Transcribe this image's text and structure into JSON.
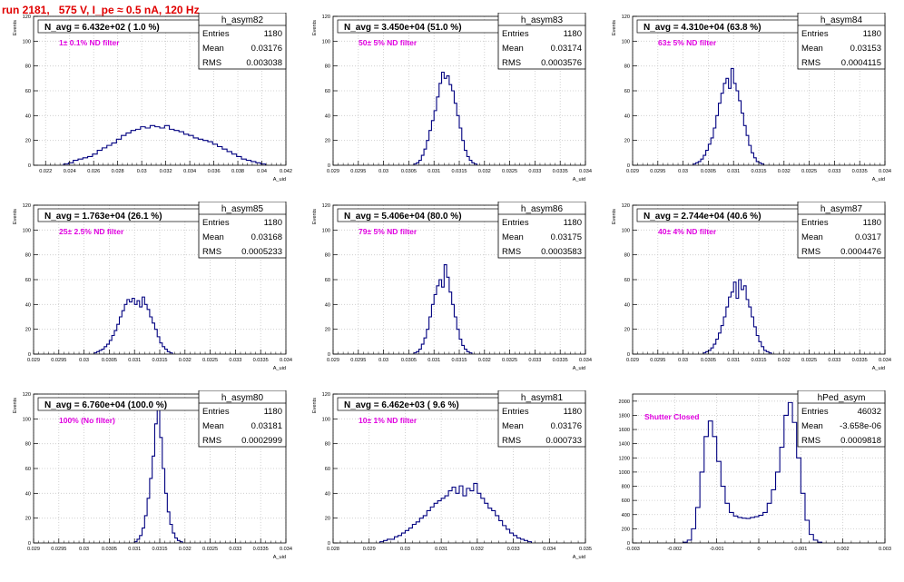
{
  "run_title": "run 2181,   575 V, I_pe ≈ 0.5 nA, 120 Hz",
  "colors": {
    "title": "#e00000",
    "histogram": "#000080",
    "note": "#e000e0",
    "grid": "#c8c8c8"
  },
  "stats_labels": {
    "entries": "Entries",
    "mean": "Mean",
    "rms": "RMS"
  },
  "chart_data": [
    {
      "type": "bar",
      "name": "h_asym82",
      "title": "N_avg = 6.432e+02 ( 1.0 %)",
      "note": "1± 0.1% ND filter",
      "stats": {
        "entries": "1180",
        "mean": "0.03176",
        "rms": "0.003038"
      },
      "xlabel": "A_uid",
      "ylabel": "Events",
      "xlim": [
        0.021,
        0.042
      ],
      "ylim": [
        0,
        120
      ],
      "xticks": [
        "0.022",
        "0.024",
        "0.026",
        "0.028",
        "0.03",
        "0.032",
        "0.034",
        "0.036",
        "0.038",
        "0.04",
        "0.042"
      ],
      "xtick_values": [
        0.022,
        0.024,
        0.026,
        0.028,
        0.03,
        0.032,
        0.034,
        0.036,
        0.038,
        0.04,
        0.042
      ],
      "yticks": [
        "0",
        "20",
        "40",
        "60",
        "80",
        "100",
        "120"
      ],
      "ytick_values": [
        0,
        20,
        40,
        60,
        80,
        100,
        120
      ],
      "grid": true,
      "bins": {
        "start": 0.0235,
        "width": 0.0004,
        "values": [
          1,
          2,
          4,
          5,
          6,
          7,
          9,
          12,
          14,
          16,
          18,
          21,
          24,
          26,
          28,
          29,
          31,
          30,
          32,
          31,
          30,
          32,
          29,
          28,
          27,
          25,
          24,
          22,
          21,
          20,
          19,
          17,
          15,
          13,
          11,
          9,
          7,
          5,
          4,
          3,
          2,
          1
        ]
      }
    },
    {
      "type": "bar",
      "name": "h_asym83",
      "title": "N_avg = 3.450e+04 (51.0 %)",
      "note": "50± 5% ND filter",
      "stats": {
        "entries": "1180",
        "mean": "0.03174",
        "rms": "0.0003576"
      },
      "xlabel": "A_uid",
      "ylabel": "Events",
      "xlim": [
        0.029,
        0.034
      ],
      "ylim": [
        0,
        120
      ],
      "xticks": [
        "0.029",
        "0.0295",
        "0.03",
        "0.0305",
        "0.031",
        "0.0315",
        "0.032",
        "0.0325",
        "0.033",
        "0.0335",
        "0.034"
      ],
      "xtick_values": [
        0.029,
        0.0295,
        0.03,
        0.0305,
        0.031,
        0.0315,
        0.032,
        0.0325,
        0.033,
        0.0335,
        0.034
      ],
      "yticks": [
        "0",
        "20",
        "40",
        "60",
        "80",
        "100",
        "120"
      ],
      "ytick_values": [
        0,
        20,
        40,
        60,
        80,
        100,
        120
      ],
      "grid": true,
      "bins": {
        "start": 0.0306,
        "width": 5e-05,
        "values": [
          1,
          2,
          4,
          8,
          13,
          20,
          28,
          36,
          44,
          55,
          66,
          75,
          70,
          72,
          65,
          60,
          50,
          40,
          30,
          20,
          12,
          7,
          4,
          2,
          1
        ]
      }
    },
    {
      "type": "bar",
      "name": "h_asym84",
      "title": "N_avg = 4.310e+04 (63.8 %)",
      "note": "63± 5% ND filter",
      "stats": {
        "entries": "1180",
        "mean": "0.03153",
        "rms": "0.0004115"
      },
      "xlabel": "A_uid",
      "ylabel": "Events",
      "xlim": [
        0.029,
        0.034
      ],
      "ylim": [
        0,
        120
      ],
      "xticks": [
        "0.029",
        "0.0295",
        "0.03",
        "0.0305",
        "0.031",
        "0.0315",
        "0.032",
        "0.0325",
        "0.033",
        "0.0335",
        "0.034"
      ],
      "xtick_values": [
        0.029,
        0.0295,
        0.03,
        0.0305,
        0.031,
        0.0315,
        0.032,
        0.0325,
        0.033,
        0.0335,
        0.034
      ],
      "yticks": [
        "0",
        "20",
        "40",
        "60",
        "80",
        "100",
        "120"
      ],
      "ytick_values": [
        0,
        20,
        40,
        60,
        80,
        100,
        120
      ],
      "grid": true,
      "bins": {
        "start": 0.0302,
        "width": 5e-05,
        "values": [
          1,
          2,
          3,
          5,
          8,
          12,
          17,
          22,
          30,
          40,
          50,
          58,
          66,
          70,
          62,
          78,
          66,
          60,
          52,
          42,
          32,
          24,
          16,
          10,
          6,
          3,
          2,
          1
        ]
      }
    },
    {
      "type": "bar",
      "name": "h_asym85",
      "title": "N_avg = 1.763e+04 (26.1 %)",
      "note": "25± 2.5% ND filter",
      "stats": {
        "entries": "1180",
        "mean": "0.03168",
        "rms": "0.0005233"
      },
      "xlabel": "A_uid",
      "ylabel": "Events",
      "xlim": [
        0.029,
        0.034
      ],
      "ylim": [
        0,
        120
      ],
      "xticks": [
        "0.029",
        "0.0295",
        "0.03",
        "0.0305",
        "0.031",
        "0.0315",
        "0.032",
        "0.0325",
        "0.033",
        "0.0335",
        "0.034"
      ],
      "xtick_values": [
        0.029,
        0.0295,
        0.03,
        0.0305,
        0.031,
        0.0315,
        0.032,
        0.0325,
        0.033,
        0.0335,
        0.034
      ],
      "yticks": [
        "0",
        "20",
        "40",
        "60",
        "80",
        "100",
        "120"
      ],
      "ytick_values": [
        0,
        20,
        40,
        60,
        80,
        100,
        120
      ],
      "grid": true,
      "bins": {
        "start": 0.0302,
        "width": 5e-05,
        "values": [
          1,
          2,
          3,
          4,
          6,
          8,
          11,
          15,
          19,
          24,
          30,
          35,
          40,
          44,
          42,
          45,
          40,
          43,
          38,
          46,
          40,
          36,
          30,
          25,
          20,
          14,
          9,
          6,
          4,
          2,
          1
        ]
      }
    },
    {
      "type": "bar",
      "name": "h_asym86",
      "title": "N_avg = 5.406e+04 (80.0 %)",
      "note": "79± 5% ND filter",
      "stats": {
        "entries": "1180",
        "mean": "0.03175",
        "rms": "0.0003583"
      },
      "xlabel": "A_uid",
      "ylabel": "Events",
      "xlim": [
        0.029,
        0.034
      ],
      "ylim": [
        0,
        120
      ],
      "xticks": [
        "0.029",
        "0.0295",
        "0.03",
        "0.0305",
        "0.031",
        "0.0315",
        "0.032",
        "0.0325",
        "0.033",
        "0.0335",
        "0.034"
      ],
      "xtick_values": [
        0.029,
        0.0295,
        0.03,
        0.0305,
        0.031,
        0.0315,
        0.032,
        0.0325,
        0.033,
        0.0335,
        0.034
      ],
      "yticks": [
        "0",
        "20",
        "40",
        "60",
        "80",
        "100",
        "120"
      ],
      "ytick_values": [
        0,
        20,
        40,
        60,
        80,
        100,
        120
      ],
      "grid": true,
      "bins": {
        "start": 0.0306,
        "width": 5e-05,
        "values": [
          1,
          2,
          4,
          8,
          13,
          20,
          30,
          40,
          48,
          55,
          60,
          54,
          72,
          62,
          50,
          40,
          30,
          20,
          12,
          7,
          4,
          2,
          1
        ]
      }
    },
    {
      "type": "bar",
      "name": "h_asym87",
      "title": "N_avg = 2.744e+04 (40.6 %)",
      "note": "40± 4% ND filter",
      "stats": {
        "entries": "1180",
        "mean": "0.0317",
        "rms": "0.0004476"
      },
      "xlabel": "A_uid",
      "ylabel": "Events",
      "xlim": [
        0.029,
        0.034
      ],
      "ylim": [
        0,
        120
      ],
      "xticks": [
        "0.029",
        "0.0295",
        "0.03",
        "0.0305",
        "0.031",
        "0.0315",
        "0.032",
        "0.0325",
        "0.033",
        "0.0335",
        "0.034"
      ],
      "xtick_values": [
        0.029,
        0.0295,
        0.03,
        0.0305,
        0.031,
        0.0315,
        0.032,
        0.0325,
        0.033,
        0.0335,
        0.034
      ],
      "yticks": [
        "0",
        "20",
        "40",
        "60",
        "80",
        "100",
        "120"
      ],
      "ytick_values": [
        0,
        20,
        40,
        60,
        80,
        100,
        120
      ],
      "grid": true,
      "bins": {
        "start": 0.0304,
        "width": 5e-05,
        "values": [
          1,
          2,
          3,
          5,
          8,
          12,
          17,
          23,
          30,
          38,
          46,
          50,
          58,
          45,
          60,
          52,
          55,
          44,
          38,
          30,
          22,
          15,
          10,
          6,
          3,
          2,
          1
        ]
      }
    },
    {
      "type": "bar",
      "name": "h_asym80",
      "title": "N_avg = 6.760e+04 (100.0 %)",
      "note": "100% (No filter)",
      "stats": {
        "entries": "1180",
        "mean": "0.03181",
        "rms": "0.0002999"
      },
      "xlabel": "A_uid",
      "ylabel": "Events",
      "xlim": [
        0.029,
        0.034
      ],
      "ylim": [
        0,
        120
      ],
      "xticks": [
        "0.029",
        "0.0295",
        "0.03",
        "0.0305",
        "0.031",
        "0.0315",
        "0.032",
        "0.0325",
        "0.033",
        "0.0335",
        "0.034"
      ],
      "xtick_values": [
        0.029,
        0.0295,
        0.03,
        0.0305,
        0.031,
        0.0315,
        0.032,
        0.0325,
        0.033,
        0.0335,
        0.034
      ],
      "yticks": [
        "0",
        "20",
        "40",
        "60",
        "80",
        "100",
        "120"
      ],
      "ytick_values": [
        0,
        20,
        40,
        60,
        80,
        100,
        120
      ],
      "grid": true,
      "bins": {
        "start": 0.031,
        "width": 5e-05,
        "values": [
          1,
          3,
          6,
          12,
          22,
          36,
          52,
          70,
          96,
          115,
          85,
          60,
          40,
          25,
          15,
          8,
          4,
          2,
          1
        ]
      }
    },
    {
      "type": "bar",
      "name": "h_asym81",
      "title": "N_avg = 6.462e+03 ( 9.6 %)",
      "note": "10± 1% ND filter",
      "stats": {
        "entries": "1180",
        "mean": "0.03176",
        "rms": "0.000733"
      },
      "xlabel": "A_uid",
      "ylabel": "Events",
      "xlim": [
        0.028,
        0.035
      ],
      "ylim": [
        0,
        120
      ],
      "xticks": [
        "0.028",
        "0.029",
        "0.03",
        "0.031",
        "0.032",
        "0.033",
        "0.034",
        "0.035"
      ],
      "xtick_values": [
        0.028,
        0.029,
        0.03,
        0.031,
        0.032,
        0.033,
        0.034,
        0.035
      ],
      "yticks": [
        "0",
        "20",
        "40",
        "60",
        "80",
        "100",
        "120"
      ],
      "ytick_values": [
        0,
        20,
        40,
        60,
        80,
        100,
        120
      ],
      "grid": true,
      "bins": {
        "start": 0.0293,
        "width": 0.0001,
        "values": [
          1,
          2,
          3,
          3,
          5,
          6,
          8,
          10,
          12,
          15,
          17,
          20,
          22,
          26,
          29,
          32,
          34,
          36,
          38,
          42,
          45,
          40,
          46,
          38,
          44,
          42,
          48,
          40,
          36,
          32,
          28,
          26,
          22,
          18,
          14,
          11,
          8,
          6,
          4,
          3,
          2,
          1
        ]
      }
    },
    {
      "type": "bar",
      "name": "hPed_asym",
      "title": "",
      "note": "Shutter Closed",
      "stats": {
        "entries": "46032",
        "mean": "-3.658e-06",
        "rms": "0.0009818"
      },
      "xlabel": "",
      "ylabel": "",
      "xlim": [
        -0.003,
        0.003
      ],
      "ylim": [
        0,
        2100
      ],
      "xticks": [
        "-0.003",
        "-0.002",
        "-0.001",
        "0",
        "0.001",
        "0.002",
        "0.003"
      ],
      "xtick_values": [
        -0.003,
        -0.002,
        -0.001,
        0,
        0.001,
        0.002,
        0.003
      ],
      "yticks": [
        "0",
        "200",
        "400",
        "600",
        "800",
        "1000",
        "1200",
        "1400",
        "1600",
        "1800",
        "2000"
      ],
      "ytick_values": [
        0,
        200,
        400,
        600,
        800,
        1000,
        1200,
        1400,
        1600,
        1800,
        2000
      ],
      "grid": true,
      "bins": {
        "start": -0.0018,
        "width": 0.0001,
        "values": [
          10,
          40,
          200,
          500,
          1000,
          1500,
          1720,
          1500,
          1150,
          800,
          560,
          430,
          380,
          360,
          350,
          345,
          360,
          370,
          390,
          430,
          560,
          750,
          1000,
          1350,
          1800,
          1980,
          1700,
          1200,
          700,
          320,
          120,
          40,
          10
        ]
      }
    }
  ]
}
